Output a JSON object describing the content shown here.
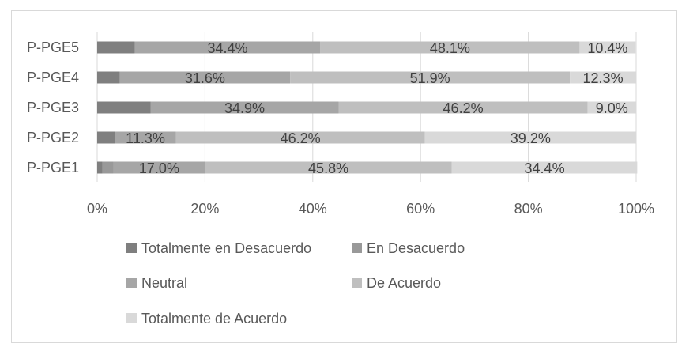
{
  "chart_data": {
    "type": "bar",
    "orientation": "horizontal",
    "stacked": "percent",
    "categories": [
      "P-PGE5",
      "P-PGE4",
      "P-PGE3",
      "P-PGE2",
      "P-PGE1"
    ],
    "series": [
      {
        "name": "Totalmente en Desacuerdo",
        "color": "#7f7f7f",
        "values": [
          7.0,
          4.2,
          9.9,
          3.3,
          1.0
        ]
      },
      {
        "name": "En Desacuerdo",
        "color": "#999999",
        "values": [
          0.0,
          0.0,
          0.0,
          0.0,
          2.0
        ]
      },
      {
        "name": "Neutral",
        "color": "#a6a6a6",
        "values": [
          34.4,
          31.6,
          34.9,
          11.3,
          17.0
        ]
      },
      {
        "name": "De Acuerdo",
        "color": "#bfbfbf",
        "values": [
          48.1,
          51.9,
          46.2,
          46.2,
          45.8
        ]
      },
      {
        "name": "Totalmente de Acuerdo",
        "color": "#d9d9d9",
        "values": [
          10.4,
          12.3,
          9.0,
          39.2,
          34.4
        ]
      }
    ],
    "data_labels": {
      "Neutral": [
        "34.4%",
        "31.6%",
        "34.9%",
        "11.3%",
        "17.0%"
      ],
      "De Acuerdo": [
        "48.1%",
        "51.9%",
        "46.2%",
        "46.2%",
        "45.8%"
      ],
      "Totalmente de Acuerdo": [
        "10.4%",
        "12.3%",
        "9.0%",
        "39.2%",
        "34.4%"
      ]
    },
    "x_ticks": [
      "0%",
      "20%",
      "40%",
      "60%",
      "80%",
      "100%"
    ],
    "xlim": [
      0,
      100
    ],
    "grid": true,
    "legend_position": "bottom",
    "title": "",
    "xlabel": "",
    "ylabel": ""
  }
}
